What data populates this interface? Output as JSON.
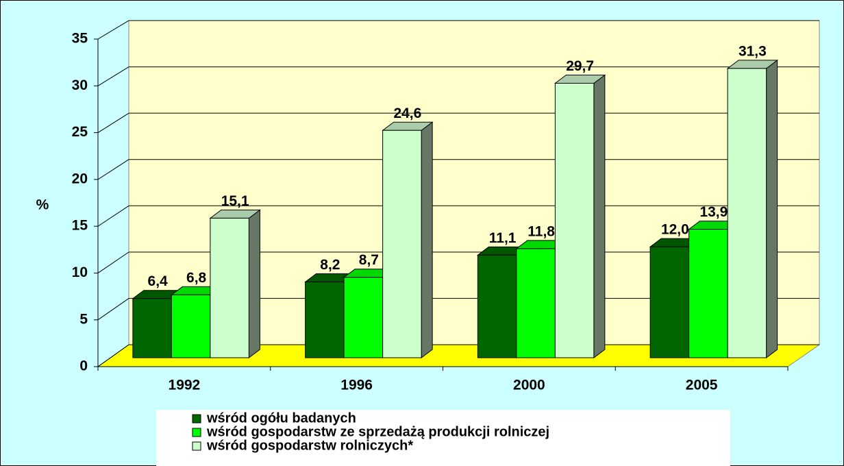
{
  "chart_data": {
    "type": "bar3d",
    "y_label": "%",
    "categories": [
      "1992",
      "1996",
      "2000",
      "2005"
    ],
    "series": [
      {
        "name": "wśród ogółu badanych",
        "color": "#006600",
        "values": [
          6.4,
          8.2,
          11.1,
          12.0
        ],
        "value_labels": [
          "6,4",
          "8,2",
          "11,1",
          "12,0"
        ]
      },
      {
        "name": "wśród gospodarstw ze sprzedażą produkcji rolniczej",
        "color": "#00ff00",
        "values": [
          6.8,
          8.7,
          11.8,
          13.9
        ],
        "value_labels": [
          "6,8",
          "8,7",
          "11,8",
          "13,9"
        ]
      },
      {
        "name": "wśród gospodarstw rolniczych*",
        "color": "#ccffcc",
        "values": [
          15.1,
          24.6,
          29.7,
          31.3
        ],
        "value_labels": [
          "15,1",
          "24,6",
          "29,7",
          "31,3"
        ]
      }
    ],
    "ylim": [
      0,
      35
    ],
    "yticks": [
      0,
      5,
      10,
      15,
      20,
      25,
      30,
      35
    ],
    "grid": true
  }
}
